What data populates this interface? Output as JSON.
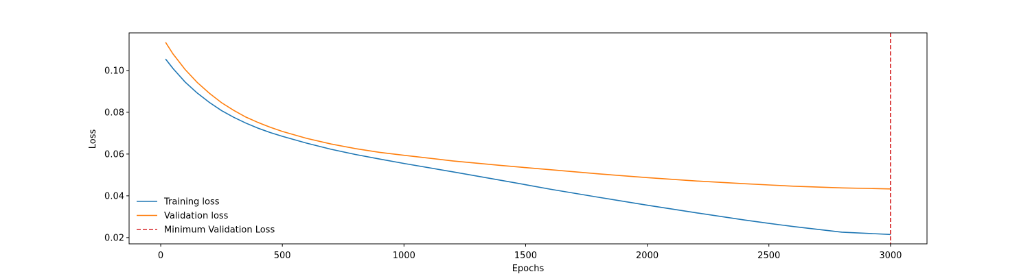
{
  "chart_data": {
    "type": "line",
    "title": "",
    "xlabel": "Epochs",
    "ylabel": "Loss",
    "xlim": [
      -130,
      3150
    ],
    "ylim": [
      0.017,
      0.118
    ],
    "xticks": [
      0,
      500,
      1000,
      1500,
      2000,
      2500,
      3000
    ],
    "xtick_labels": [
      "0",
      "500",
      "1000",
      "1500",
      "2000",
      "2500",
      "3000"
    ],
    "yticks": [
      0.02,
      0.04,
      0.06,
      0.08,
      0.1
    ],
    "ytick_labels": [
      "0.02",
      "0.04",
      "0.06",
      "0.08",
      "0.10"
    ],
    "grid": false,
    "legend_position": "lower-left",
    "series": [
      {
        "name": "Training loss",
        "color": "#1f77b4",
        "x": [
          20,
          50,
          100,
          150,
          200,
          250,
          300,
          350,
          400,
          450,
          500,
          600,
          700,
          800,
          900,
          1000,
          1200,
          1400,
          1500,
          1600,
          1800,
          2000,
          2200,
          2400,
          2500,
          2600,
          2800,
          3000
        ],
        "y": [
          0.1055,
          0.101,
          0.0945,
          0.0892,
          0.0847,
          0.0808,
          0.0776,
          0.0748,
          0.0724,
          0.0703,
          0.0685,
          0.0652,
          0.0623,
          0.0598,
          0.0576,
          0.0555,
          0.0515,
          0.0474,
          0.0453,
          0.0432,
          0.0393,
          0.0355,
          0.0319,
          0.0284,
          0.0268,
          0.0253,
          0.0226,
          0.0215
        ]
      },
      {
        "name": "Validation loss",
        "color": "#ff7f0e",
        "x": [
          20,
          50,
          100,
          150,
          200,
          250,
          300,
          350,
          400,
          450,
          500,
          600,
          700,
          800,
          900,
          1000,
          1200,
          1400,
          1500,
          1600,
          1800,
          2000,
          2200,
          2400,
          2500,
          2600,
          2800,
          3000
        ],
        "y": [
          0.1135,
          0.108,
          0.1005,
          0.0943,
          0.0891,
          0.0846,
          0.0809,
          0.0777,
          0.0751,
          0.0728,
          0.0708,
          0.0675,
          0.0648,
          0.0626,
          0.0608,
          0.0594,
          0.0567,
          0.0545,
          0.0535,
          0.0525,
          0.0505,
          0.0487,
          0.0471,
          0.0458,
          0.0452,
          0.0446,
          0.0438,
          0.0433
        ]
      }
    ],
    "annotations": [
      {
        "name": "Minimum Validation Loss",
        "type": "vline",
        "x": 3000,
        "color": "#d62728",
        "style": "dashed"
      }
    ]
  }
}
